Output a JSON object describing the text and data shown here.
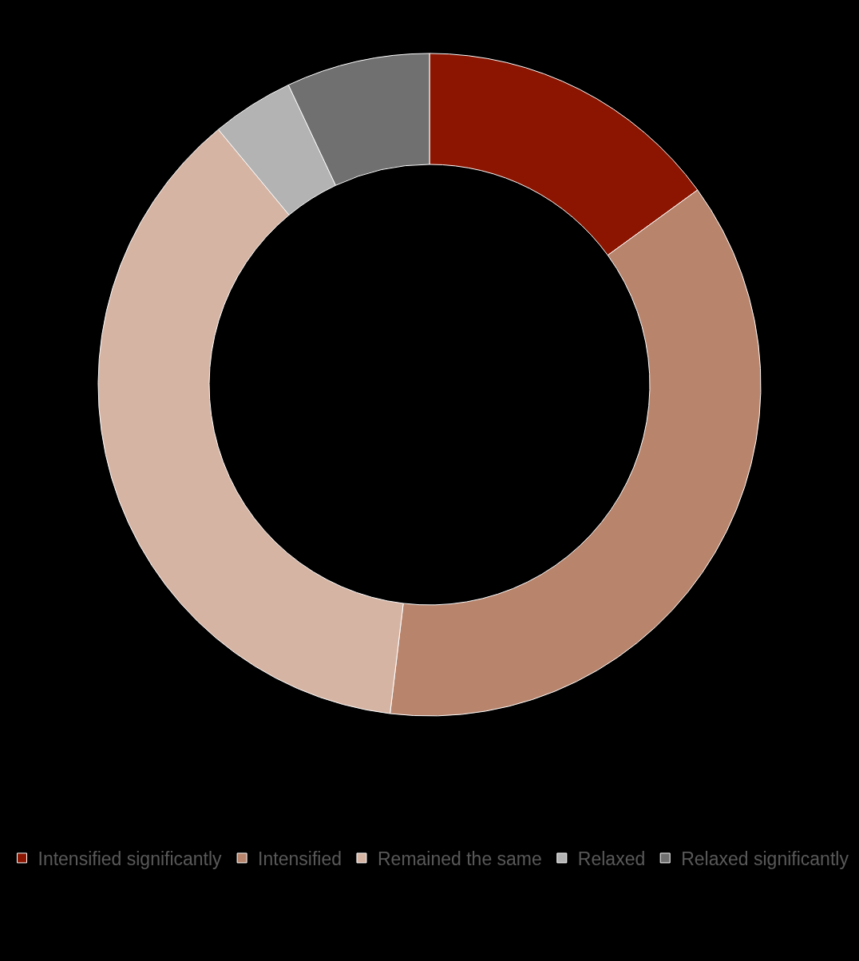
{
  "chart_data": {
    "type": "donut",
    "categories": [
      "Intensified significantly",
      "Intensified",
      "Remained the same",
      "Relaxed",
      "Relaxed significantly"
    ],
    "values": [
      15,
      36.9,
      37.1,
      4,
      7
    ],
    "colors": [
      "#8b1500",
      "#b8846c",
      "#d6b4a3",
      "#b3b3b3",
      "#707070"
    ],
    "legend": "bottom"
  }
}
